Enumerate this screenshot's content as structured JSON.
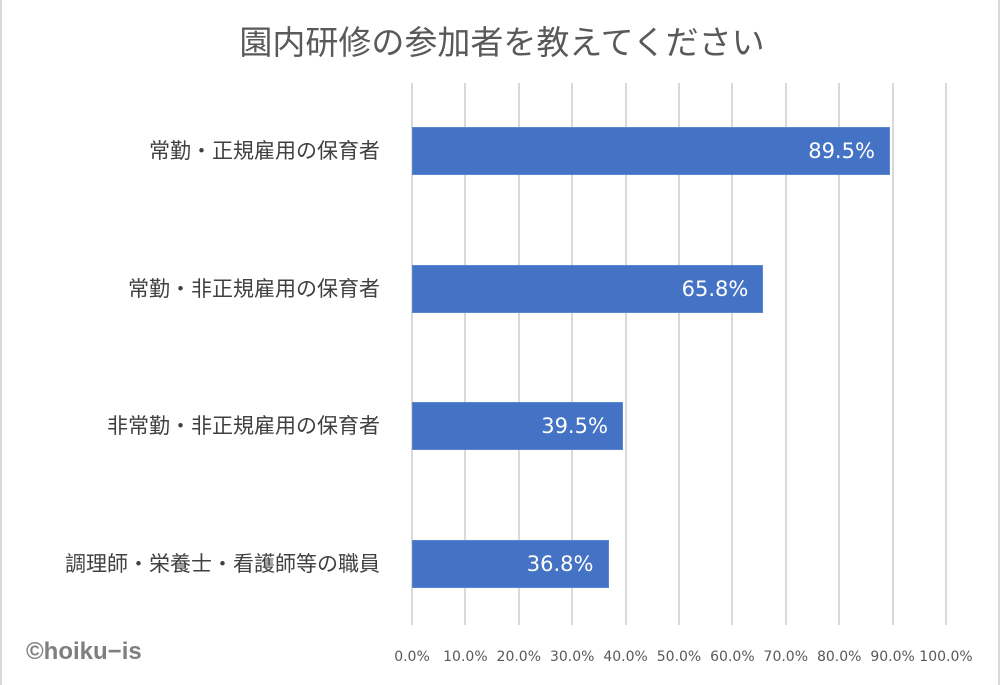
{
  "chart_data": {
    "type": "bar",
    "orientation": "horizontal",
    "title": "園内研修の参加者を教えてください",
    "categories": [
      "常勤・正規雇用の保育者",
      "常勤・非正規雇用の保育者",
      "非常勤・非正規雇用の保育者",
      "調理師・栄養士・看護師等の職員"
    ],
    "values": [
      89.5,
      65.8,
      39.5,
      36.8
    ],
    "value_labels": [
      "89.5%",
      "65.8%",
      "39.5%",
      "36.8%"
    ],
    "xlabel": "",
    "ylabel": "",
    "xlim": [
      0,
      100
    ],
    "x_ticks": [
      "0.0%",
      "10.0%",
      "20.0%",
      "30.0%",
      "40.0%",
      "50.0%",
      "60.0%",
      "70.0%",
      "80.0%",
      "90.0%",
      "100.0%"
    ],
    "grid": "vertical",
    "legend": null,
    "bar_color": "#4472c4"
  },
  "watermark": "©hoiku−is"
}
